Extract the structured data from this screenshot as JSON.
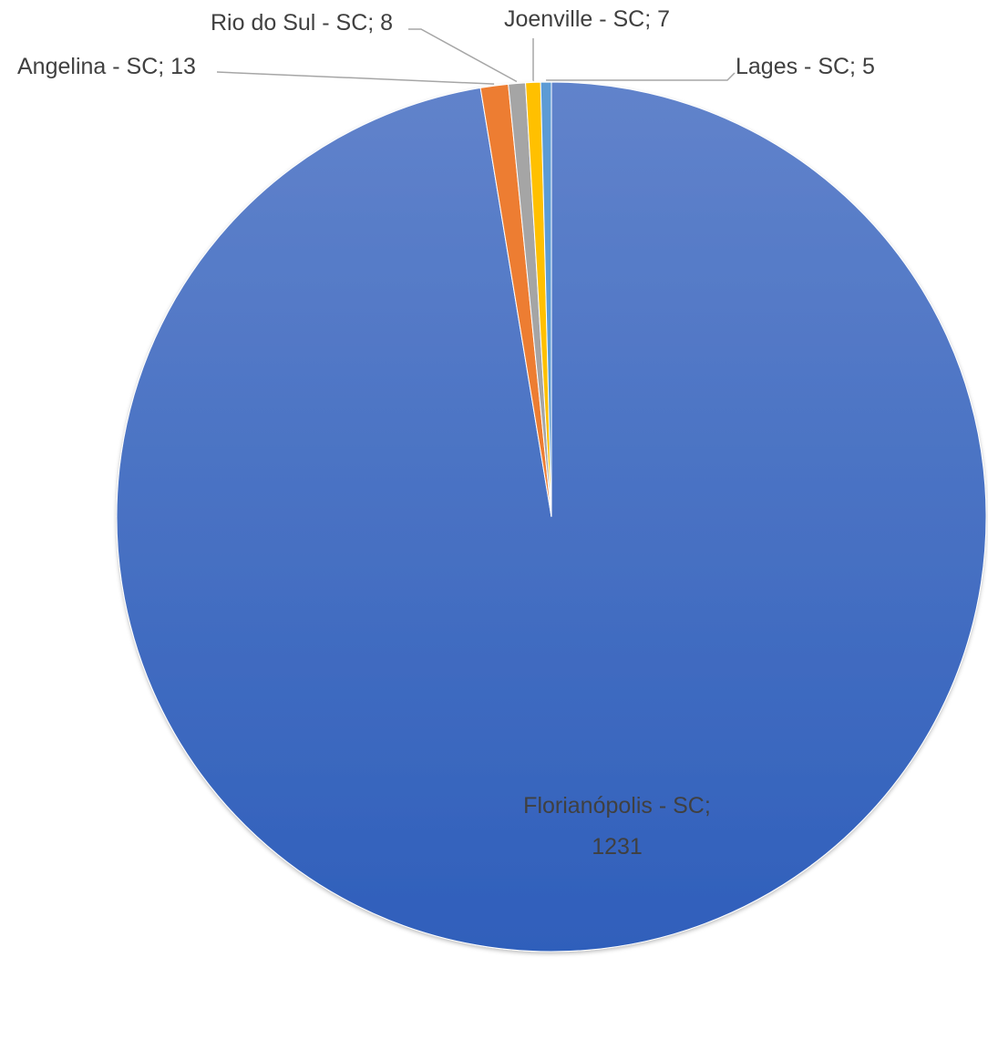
{
  "chart_data": {
    "type": "pie",
    "title": "",
    "slices": [
      {
        "label": "Florianópolis - SC",
        "value": 1231,
        "color": "#4472c4",
        "data_label": "Florianópolis - SC;",
        "data_label_line2": "1231"
      },
      {
        "label": "Angelina - SC",
        "value": 13,
        "color": "#ed7d31",
        "data_label": "Angelina - SC; 13"
      },
      {
        "label": "Rio do Sul - SC",
        "value": 8,
        "color": "#a5a5a5",
        "data_label": "Rio do Sul - SC; 8"
      },
      {
        "label": "Joenville - SC",
        "value": 7,
        "color": "#ffc000",
        "data_label": "Joenville - SC; 7"
      },
      {
        "label": "Lages - SC",
        "value": 5,
        "color": "#5b9bd5",
        "data_label": "Lages - SC; 5"
      }
    ],
    "legend": "none",
    "start_angle": "12 o'clock",
    "direction": "clockwise"
  }
}
